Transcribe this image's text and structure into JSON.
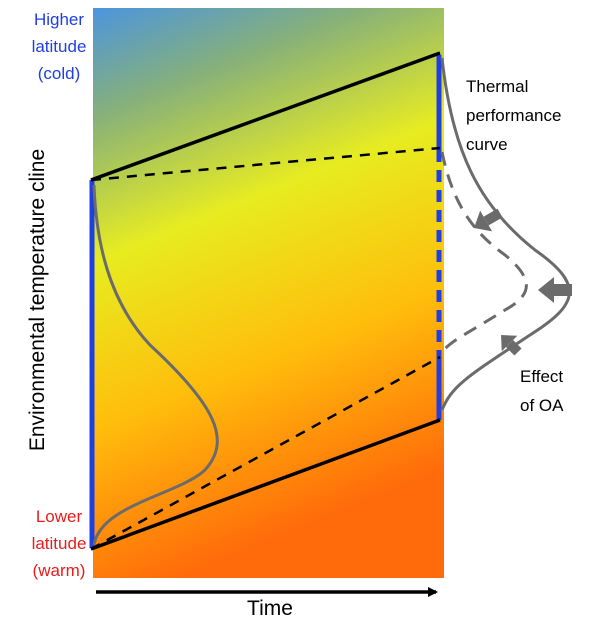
{
  "labels": {
    "higher_latitude": [
      "Higher",
      "latitude",
      "(cold)"
    ],
    "lower_latitude": [
      "Lower",
      "latitude",
      "(warm)"
    ],
    "thermal_curve": [
      "Thermal",
      "performance",
      "curve"
    ],
    "effect_oa": [
      "Effect",
      "of OA"
    ],
    "y_axis": "Environmental temperature cline",
    "x_axis": "Time"
  },
  "colors": {
    "cold_label": "#1f3fe0",
    "warm_label": "#e81c1c",
    "blue_bar": "#1f3fe0",
    "curve": "#6b6b6b",
    "gradient_top": "#4c95de",
    "gradient_mid": "#e7ec21",
    "gradient_bottom": "#ff6a0a"
  }
}
